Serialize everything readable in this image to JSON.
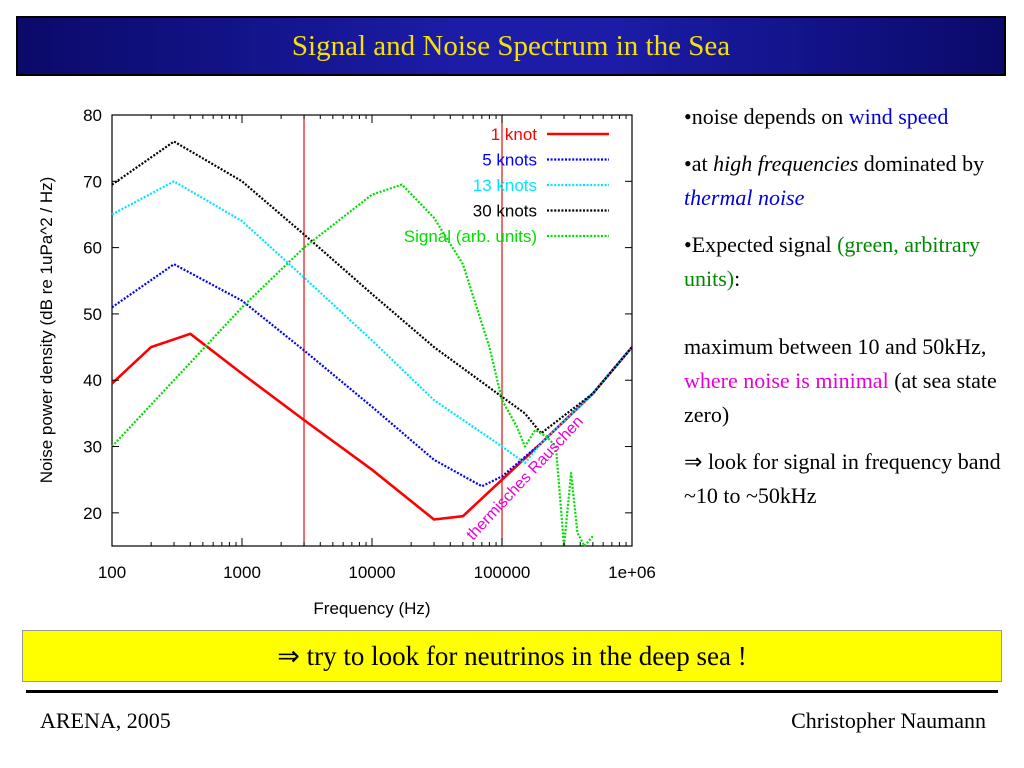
{
  "slide": {
    "title": "Signal and Noise Spectrum in the Sea",
    "bullets": [
      {
        "prefix": "•noise depends on ",
        "highlight": "wind speed",
        "suffix": ""
      },
      {
        "prefix": "•at ",
        "italic": "high frequencies",
        "middle": " dominated by ",
        "highlight": "thermal noise"
      },
      {
        "prefix": "•Expected signal ",
        "highlight": "(green, arbitrary units)",
        "suffix": ":"
      },
      {
        "prefix": "maximum between 10 and 50kHz, ",
        "highlight": "where noise is minimal",
        "suffix": " (at sea state zero)"
      },
      {
        "arrow": "⇒",
        "text": " look for signal in frequency band ~10 to ~50kHz"
      }
    ],
    "callout": {
      "arrow": "⇒",
      "text": " try to look for neutrinos in the deep sea !"
    },
    "footer_left": "ARENA, 2005",
    "footer_right": "Christopher Naumann",
    "colors": {
      "title_bg": "#1c1ca8",
      "title_text": "#f5e200",
      "callout_bg": "#ffff00"
    }
  },
  "chart_data": {
    "type": "line",
    "xlabel": "Frequency (Hz)",
    "ylabel": "Noise power density (dB re 1uPa^2 / Hz)",
    "xscale": "log",
    "xlim": [
      100,
      1000000
    ],
    "ylim": [
      15,
      80
    ],
    "x_ticks": [
      100,
      1000,
      10000,
      100000,
      1000000
    ],
    "x_tick_labels": [
      "100",
      "1000",
      "10000",
      "100000",
      "1e+06"
    ],
    "y_ticks": [
      20,
      30,
      40,
      50,
      60,
      70,
      80
    ],
    "y_tick_labels": [
      "20",
      "30",
      "40",
      "50",
      "60",
      "70",
      "80"
    ],
    "vlines": [
      3000,
      100000
    ],
    "annotation": {
      "text": "thermisches Rauschen",
      "color": "#e800d8"
    },
    "legend_position": "top-right",
    "series": [
      {
        "name": "1 knot",
        "color": "#ff0000",
        "style": "solid",
        "x": [
          100,
          200,
          400,
          1000,
          3000,
          10000,
          30000,
          50000,
          100000,
          200000,
          500000,
          1000000
        ],
        "y": [
          39.5,
          45,
          47,
          41,
          34,
          26.5,
          19,
          19.5,
          25,
          30.5,
          38,
          45
        ]
      },
      {
        "name": "5 knots",
        "color": "#0000ff",
        "style": "dotted",
        "x": [
          100,
          300,
          1000,
          3000,
          10000,
          30000,
          70000,
          100000,
          200000,
          500000,
          1000000
        ],
        "y": [
          51,
          57.5,
          52,
          44.5,
          36,
          28,
          24,
          25.5,
          30.5,
          38,
          45
        ]
      },
      {
        "name": "13 knots",
        "color": "#00e5ff",
        "style": "dotted",
        "x": [
          100,
          300,
          1000,
          3000,
          10000,
          30000,
          100000,
          150000,
          200000,
          500000,
          1000000
        ],
        "y": [
          65,
          70,
          64,
          55.5,
          46,
          37,
          30,
          27.5,
          30.5,
          38,
          45
        ]
      },
      {
        "name": "30 knots",
        "color": "#000000",
        "style": "dotted",
        "x": [
          100,
          300,
          1000,
          3000,
          10000,
          30000,
          100000,
          150000,
          200000,
          500000,
          1000000
        ],
        "y": [
          69.5,
          76,
          70,
          62,
          53,
          45,
          37.5,
          35,
          32,
          38,
          45
        ]
      },
      {
        "name": "Signal (arb. units)",
        "color": "#00dd00",
        "style": "dotted",
        "x": [
          100,
          300,
          1000,
          3000,
          10000,
          17000,
          30000,
          50000,
          80000,
          100000,
          130000,
          150000,
          180000,
          220000,
          260000,
          300000,
          340000,
          380000,
          430000,
          500000
        ],
        "y": [
          30,
          40,
          51,
          60,
          68,
          69.5,
          64.5,
          57.5,
          45,
          37,
          33,
          30,
          32.5,
          31.5,
          30,
          15,
          26,
          17,
          15,
          16.5
        ]
      }
    ]
  }
}
